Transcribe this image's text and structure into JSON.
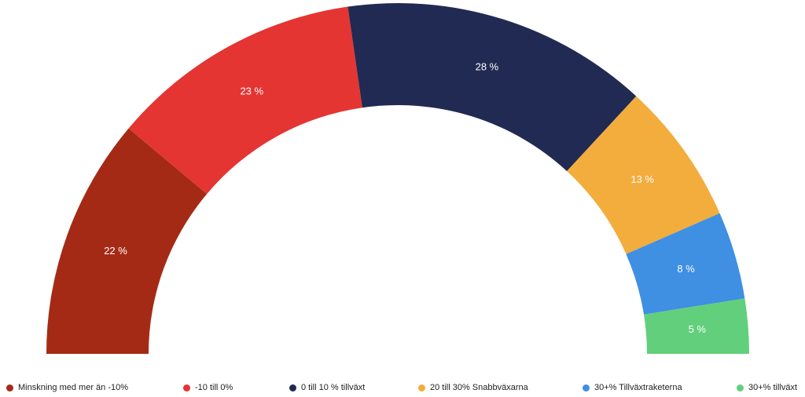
{
  "chart_data": {
    "type": "pie",
    "variant": "semi-donut",
    "categories": [
      "Minskning med mer än -10%",
      "-10 till 0%",
      "0 till 10 % tillväxt",
      "20 till 30% Snabbväxarna",
      "30+% Tillväxtraketerna",
      "30+% tillväxt"
    ],
    "values": [
      22,
      23,
      28,
      13,
      8,
      5
    ],
    "labels": [
      "22 %",
      "23 %",
      "28 %",
      "13 %",
      "8 %",
      "5 %"
    ],
    "colors": [
      "#a52a16",
      "#e43532",
      "#212a52",
      "#f2ad3d",
      "#3f8fe3",
      "#62cf7c"
    ],
    "legend_position": "bottom"
  }
}
